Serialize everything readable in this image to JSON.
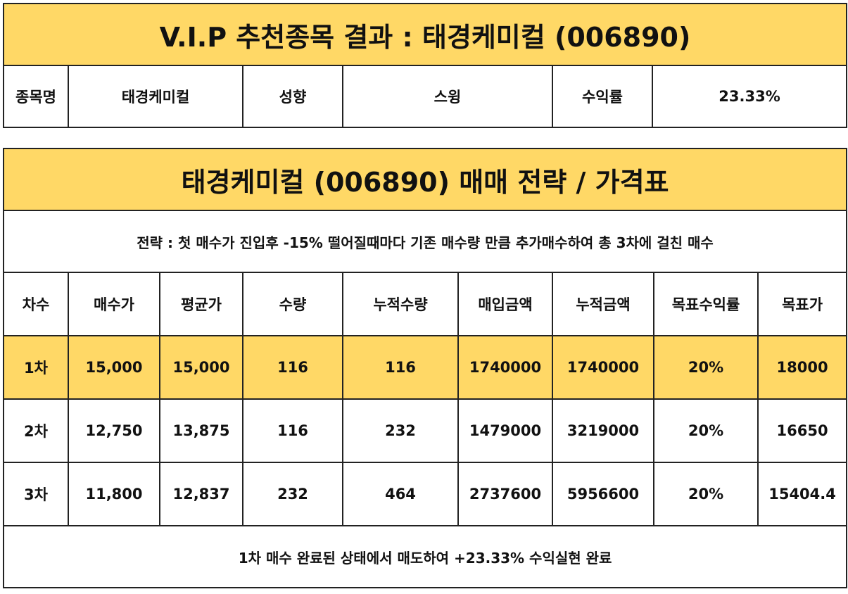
{
  "header": {
    "title": "V.I.P 추천종목 결과 : 태경케미컬 (006890)",
    "labels": {
      "name": "종목명",
      "style": "성향",
      "return": "수익률"
    },
    "values": {
      "name": "태경케미컬",
      "style": "스윙",
      "return": "23.33%"
    }
  },
  "strategy": {
    "title": "태경케미컬 (006890) 매매 전략 / 가격표",
    "description": "전략 : 첫 매수가 진입후 -15% 떨어질때마다 기존 매수량 만큼 추가매수하여 총 3차에 걸친 매수",
    "columns": [
      "차수",
      "매수가",
      "평균가",
      "수량",
      "누적수량",
      "매입금액",
      "누적금액",
      "목표수익률",
      "목표가"
    ],
    "rows": [
      [
        "1차",
        "15,000",
        "15,000",
        "116",
        "116",
        "1740000",
        "1740000",
        "20%",
        "18000"
      ],
      [
        "2차",
        "12,750",
        "13,875",
        "116",
        "232",
        "1479000",
        "3219000",
        "20%",
        "16650"
      ],
      [
        "3차",
        "11,800",
        "12,837",
        "232",
        "464",
        "2737600",
        "5956600",
        "20%",
        "15404.4"
      ]
    ],
    "result": "1차 매수 완료된 상태에서 매도하여 +23.33% 수익실현 완료"
  },
  "colors": {
    "highlight": "#FFD866",
    "border": "#222222"
  }
}
